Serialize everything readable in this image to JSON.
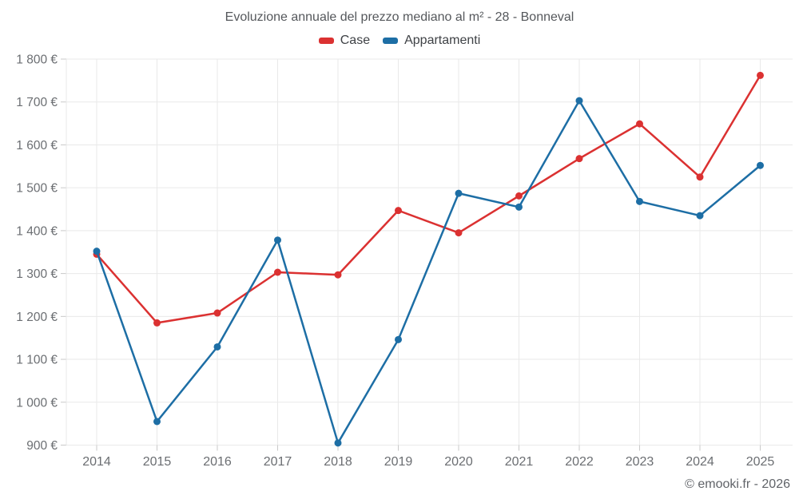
{
  "header": {
    "title": "Evoluzione annuale del prezzo mediano al m² - 28 - Bonneval",
    "attribution": "© emooki.fr - 2026"
  },
  "chart_data": {
    "type": "line",
    "title": "Evoluzione annuale del prezzo mediano al m² - 28 - Bonneval",
    "categories": [
      "2014",
      "2015",
      "2016",
      "2017",
      "2018",
      "2019",
      "2020",
      "2021",
      "2022",
      "2023",
      "2024",
      "2025"
    ],
    "series": [
      {
        "name": "Case",
        "color": "#db3131",
        "values": [
          1345,
          1185,
          1208,
          1303,
          1297,
          1447,
          1395,
          1481,
          1568,
          1649,
          1525,
          1762
        ]
      },
      {
        "name": "Appartamenti",
        "color": "#1d6ea5",
        "values": [
          1352,
          955,
          1129,
          1378,
          905,
          1146,
          1487,
          1455,
          1703,
          1468,
          1435,
          1552
        ]
      }
    ],
    "xlabel": "",
    "ylabel": "",
    "ylim": [
      900,
      1800
    ],
    "ytick_step": 100,
    "ytick_labels": [
      "900 €",
      "1 000 €",
      "1 100 €",
      "1 200 €",
      "1 300 €",
      "1 400 €",
      "1 500 €",
      "1 600 €",
      "1 700 €",
      "1 800 €"
    ],
    "grid": true,
    "legend_position": "top",
    "unit": "€/m²"
  },
  "style": {
    "grid_color": "#e9e9e9",
    "tick_color": "#c9c9c9",
    "axis_label_color": "#6b6e72"
  }
}
